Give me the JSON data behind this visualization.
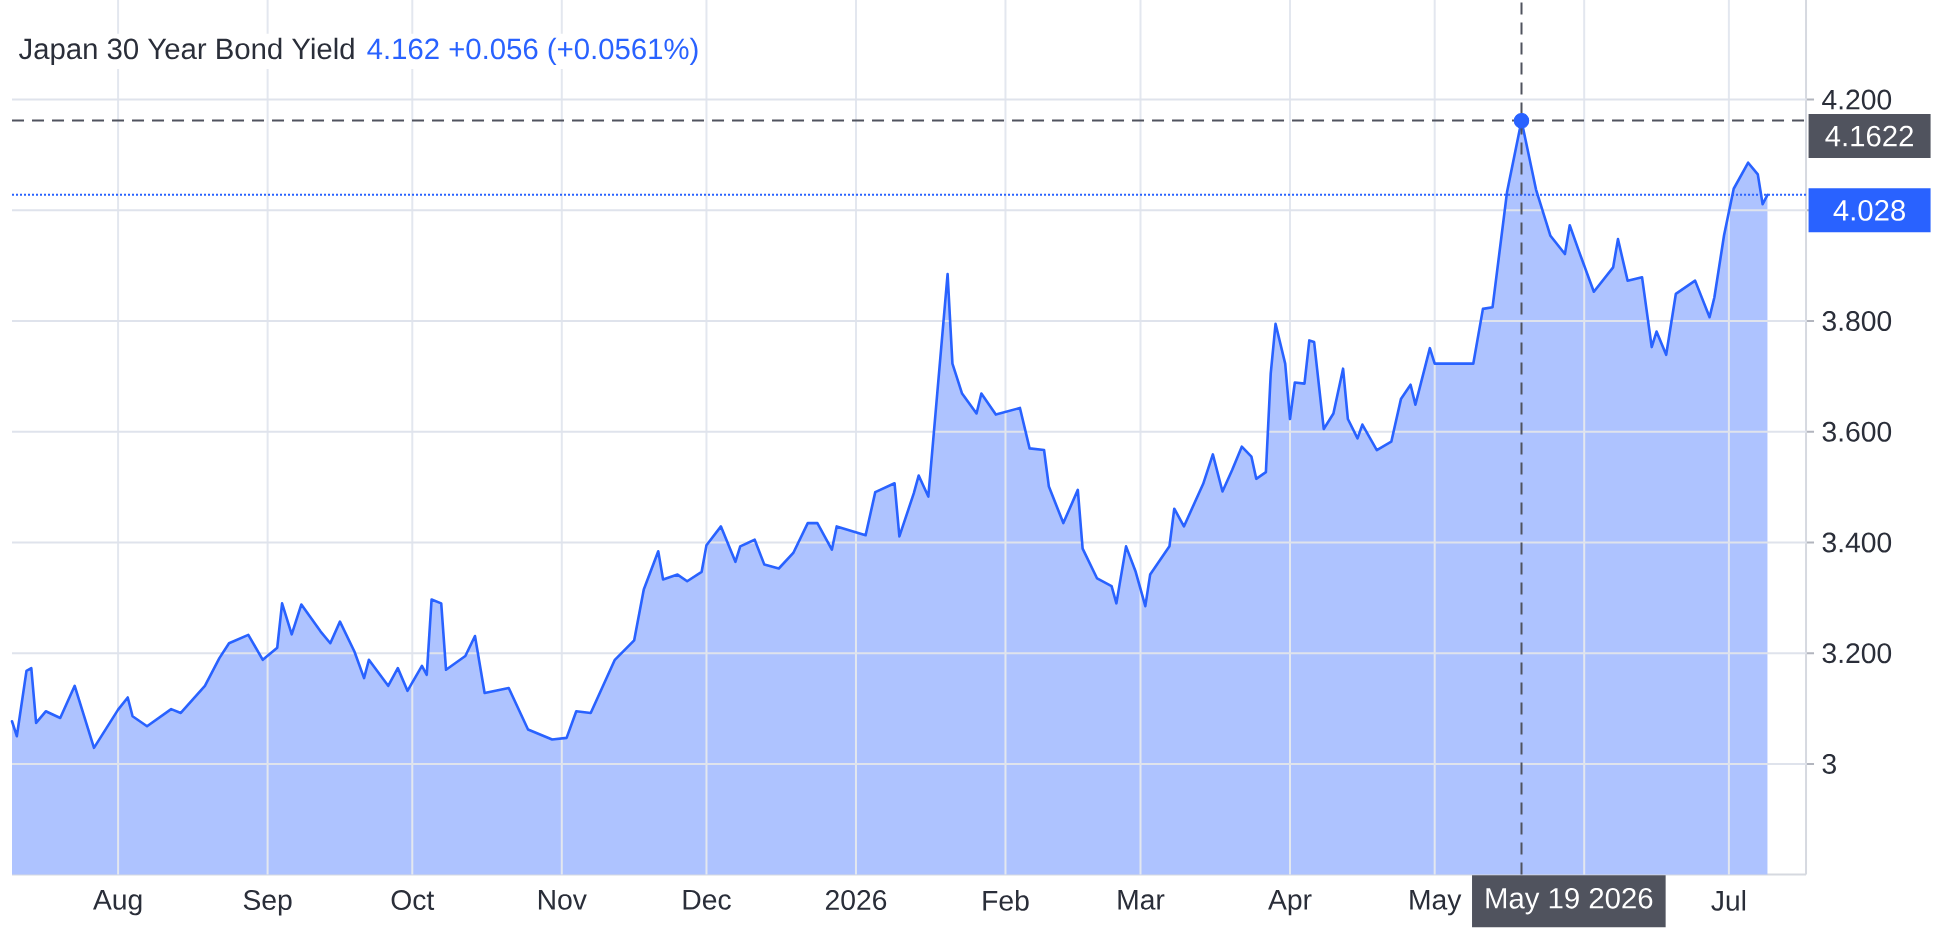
{
  "chart_data": {
    "type": "area",
    "title": "Japan 30 Year Bond Yield",
    "subtitle": "4.162  +0.056 (+0.0561%)",
    "x": [
      "2025-07-10",
      "2025-07-11",
      "2025-07-13",
      "2025-07-14",
      "2025-07-15",
      "2025-07-17",
      "2025-07-20",
      "2025-07-23",
      "2025-07-27",
      "2025-08-01",
      "2025-08-03",
      "2025-08-04",
      "2025-08-07",
      "2025-08-12",
      "2025-08-14",
      "2025-08-19",
      "2025-08-22",
      "2025-08-24",
      "2025-08-28",
      "2025-08-31",
      "2025-09-03",
      "2025-09-04",
      "2025-09-06",
      "2025-09-08",
      "2025-09-12",
      "2025-09-14",
      "2025-09-16",
      "2025-09-19",
      "2025-09-21",
      "2025-09-22",
      "2025-09-26",
      "2025-09-28",
      "2025-09-30",
      "2025-10-03",
      "2025-10-04",
      "2025-10-05",
      "2025-10-07",
      "2025-10-08",
      "2025-10-12",
      "2025-10-14",
      "2025-10-16",
      "2025-10-21",
      "2025-10-25",
      "2025-10-30",
      "2025-11-02",
      "2025-11-04",
      "2025-11-07",
      "2025-11-12",
      "2025-11-16",
      "2025-11-18",
      "2025-11-21",
      "2025-11-22",
      "2025-11-25",
      "2025-11-27",
      "2025-11-30",
      "2025-12-01",
      "2025-12-04",
      "2025-12-07",
      "2025-12-08",
      "2025-12-11",
      "2025-12-13",
      "2025-12-16",
      "2025-12-19",
      "2025-12-22",
      "2025-12-24",
      "2025-12-27",
      "2025-12-28",
      "2026-01-03",
      "2026-01-05",
      "2026-01-09",
      "2026-01-10",
      "2026-01-13",
      "2026-01-14",
      "2026-01-16",
      "2026-01-20",
      "2026-01-21",
      "2026-01-23",
      "2026-01-26",
      "2026-01-27",
      "2026-01-30",
      "2026-02-04",
      "2026-02-06",
      "2026-02-09",
      "2026-02-10",
      "2026-02-13",
      "2026-02-16",
      "2026-02-17",
      "2026-02-20",
      "2026-02-23",
      "2026-02-24",
      "2026-02-26",
      "2026-02-28",
      "2026-03-02",
      "2026-03-03",
      "2026-03-07",
      "2026-03-08",
      "2026-03-10",
      "2026-03-14",
      "2026-03-16",
      "2026-03-18",
      "2026-03-20",
      "2026-03-22",
      "2026-03-24",
      "2026-03-25",
      "2026-03-27",
      "2026-03-28",
      "2026-03-29",
      "2026-03-31",
      "2026-04-01",
      "2026-04-02",
      "2026-04-04",
      "2026-04-05",
      "2026-04-06",
      "2026-04-08",
      "2026-04-10",
      "2026-04-12",
      "2026-04-13",
      "2026-04-15",
      "2026-04-16",
      "2026-04-19",
      "2026-04-22",
      "2026-04-24",
      "2026-04-26",
      "2026-04-27",
      "2026-04-30",
      "2026-05-01",
      "2026-05-06",
      "2026-05-09",
      "2026-05-11",
      "2026-05-13",
      "2026-05-16",
      "2026-05-19",
      "2026-05-22",
      "2026-05-25",
      "2026-05-28",
      "2026-05-29",
      "2026-05-31",
      "2026-06-03",
      "2026-06-07",
      "2026-06-08",
      "2026-06-10",
      "2026-06-13",
      "2026-06-15",
      "2026-06-16",
      "2026-06-18",
      "2026-06-20",
      "2026-06-24",
      "2026-06-27",
      "2026-06-28",
      "2026-06-30",
      "2026-07-02",
      "2026-07-05",
      "2026-07-07",
      "2026-07-08",
      "2026-07-09"
    ],
    "series": [
      {
        "color": "#2962ff",
        "values": [
          3.077,
          3.05,
          3.168,
          3.173,
          3.074,
          3.095,
          3.083,
          3.141,
          3.029,
          3.098,
          3.12,
          3.086,
          3.068,
          3.099,
          3.092,
          3.141,
          3.191,
          3.218,
          3.233,
          3.188,
          3.21,
          3.29,
          3.234,
          3.288,
          3.239,
          3.218,
          3.257,
          3.203,
          3.155,
          3.188,
          3.141,
          3.173,
          3.132,
          3.177,
          3.161,
          3.297,
          3.29,
          3.17,
          3.195,
          3.231,
          3.128,
          3.137,
          3.062,
          3.044,
          3.047,
          3.095,
          3.092,
          3.188,
          3.223,
          3.315,
          3.384,
          3.333,
          3.342,
          3.33,
          3.347,
          3.395,
          3.429,
          3.365,
          3.393,
          3.405,
          3.36,
          3.353,
          3.381,
          3.435,
          3.435,
          3.387,
          3.429,
          3.413,
          3.491,
          3.507,
          3.411,
          3.489,
          3.521,
          3.483,
          3.885,
          3.723,
          3.669,
          3.633,
          3.669,
          3.631,
          3.643,
          3.57,
          3.567,
          3.501,
          3.435,
          3.495,
          3.389,
          3.335,
          3.321,
          3.29,
          3.393,
          3.347,
          3.285,
          3.342,
          3.393,
          3.461,
          3.429,
          3.506,
          3.559,
          3.492,
          3.531,
          3.573,
          3.555,
          3.515,
          3.527,
          3.705,
          3.795,
          3.723,
          3.623,
          3.689,
          3.687,
          3.765,
          3.762,
          3.605,
          3.633,
          3.714,
          3.623,
          3.588,
          3.613,
          3.567,
          3.582,
          3.659,
          3.685,
          3.649,
          3.751,
          3.723,
          3.723,
          3.723,
          3.822,
          3.825,
          4.033,
          4.162,
          4.038,
          3.954,
          3.921,
          3.973,
          3.924,
          3.853,
          3.897,
          3.948,
          3.873,
          3.879,
          3.753,
          3.781,
          3.739,
          3.849,
          3.873,
          3.807,
          3.843,
          3.955,
          4.039,
          4.086,
          4.065,
          4.011,
          4.028
        ]
      },
      {
        "type": "scatter",
        "x": [
          "2026-05-19"
        ],
        "values": [
          4.162
        ],
        "color": "#2962ff",
        "marker": "circle"
      }
    ],
    "xlim": [
      "2025-07-10",
      "2026-07-17"
    ],
    "ylim": [
      2.8,
      4.38
    ],
    "xticks": [
      {
        "value": "2025-08-01",
        "label": "Aug"
      },
      {
        "value": "2025-09-01",
        "label": "Sep"
      },
      {
        "value": "2025-10-01",
        "label": "Oct"
      },
      {
        "value": "2025-11-01",
        "label": "Nov"
      },
      {
        "value": "2025-12-01",
        "label": "Dec"
      },
      {
        "value": "2026-01-01",
        "label": "2026"
      },
      {
        "value": "2026-02-01",
        "label": "Feb"
      },
      {
        "value": "2026-03-01",
        "label": "Mar"
      },
      {
        "value": "2026-04-01",
        "label": "Apr"
      },
      {
        "value": "2026-05-01",
        "label": "May"
      },
      {
        "value": "2026-06-01",
        "label": null
      },
      {
        "value": "2026-07-01",
        "label": "Jul"
      }
    ],
    "yticks": [
      3,
      {
        "value": 3.2,
        "label": "3.200"
      },
      {
        "value": 3.4,
        "label": "3.400"
      },
      {
        "value": 3.6,
        "label": "3.600"
      },
      {
        "value": 3.8,
        "label": "3.800"
      },
      {
        "value": 4.0,
        "label": null
      },
      {
        "value": 4.2,
        "label": "4.200"
      }
    ],
    "grid": true,
    "ref_lines": [
      {
        "axis": "y",
        "value": 4.1622,
        "label": "4.1622",
        "color": "#50535e",
        "line_style": "dashed"
      },
      {
        "axis": "y",
        "value": 4.028,
        "label": "4.028",
        "color": "#2962ff",
        "line_style": "dotted"
      },
      {
        "axis": "x",
        "value": "2026-05-19",
        "label": "May 19 2026",
        "color": "#50535e",
        "line_style": "dashed"
      }
    ]
  }
}
